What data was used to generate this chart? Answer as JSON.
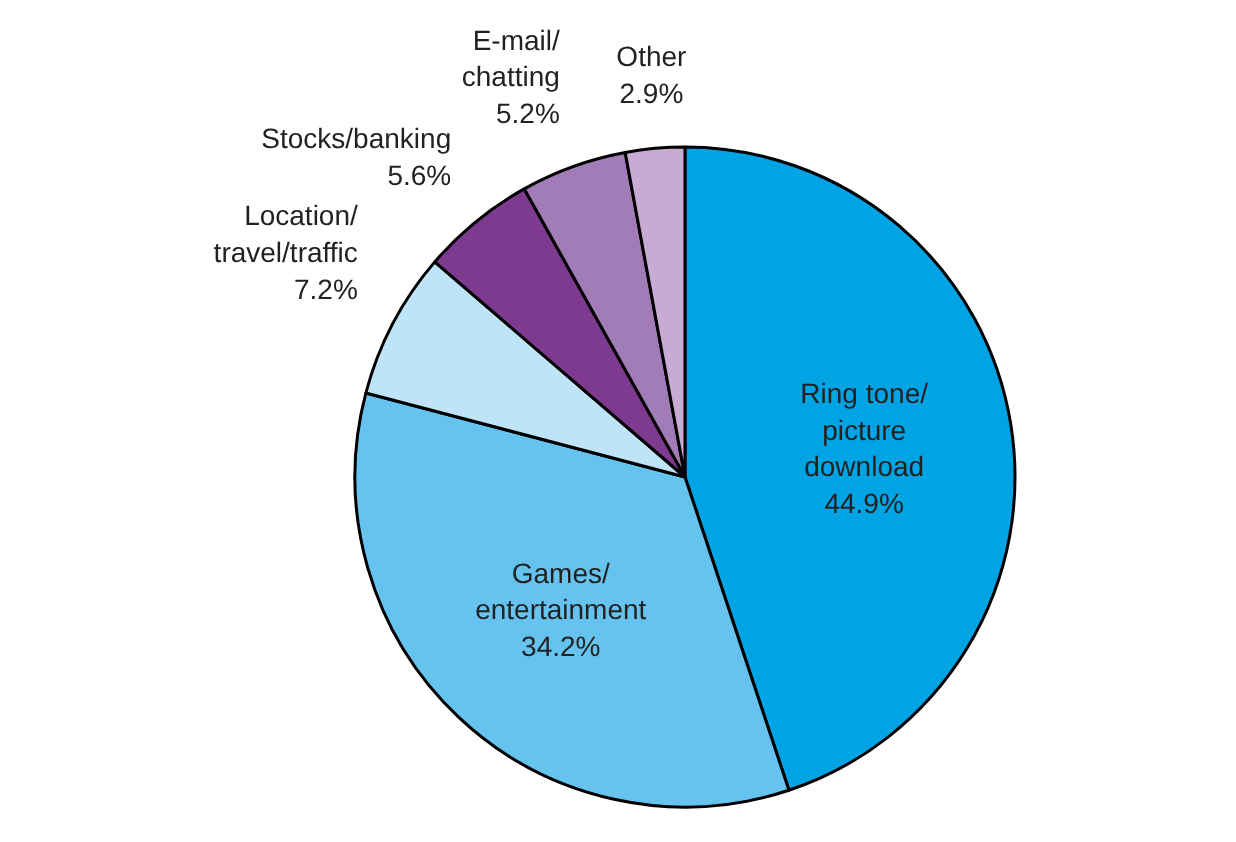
{
  "chart_data": {
    "type": "pie",
    "categories": [
      "Ring tone/\npicture\ndownload",
      "Games/\nentertainment",
      "Location/\ntravel/traffic",
      "Stocks/banking",
      "E-mail/\nchatting",
      "Other"
    ],
    "values": [
      44.9,
      34.2,
      7.2,
      5.6,
      5.2,
      2.9
    ],
    "colors": [
      "#00a3e4",
      "#66c2ee",
      "#bfe4f8",
      "#7d3a8f",
      "#a27cb6",
      "#c8abd3"
    ],
    "value_labels": [
      "44.9%",
      "34.2%",
      "7.2%",
      "5.6%",
      "5.2%",
      "2.9%"
    ]
  }
}
